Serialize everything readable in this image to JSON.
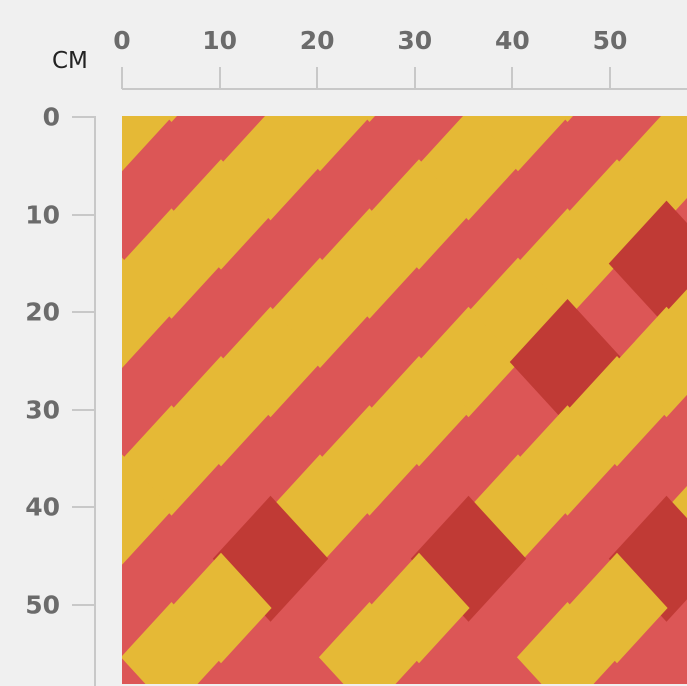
{
  "ruler": {
    "unit": "CM",
    "horizontal_labels": [
      "0",
      "10",
      "20",
      "30",
      "40",
      "50"
    ],
    "vertical_labels": [
      "0",
      "10",
      "20",
      "30",
      "40",
      "50"
    ]
  },
  "fabric_preview": {
    "pattern": "harlequin diamonds",
    "colors": {
      "light_red": "#dc5656",
      "yellow": "#e5b936",
      "dark_red": "#c03a35"
    }
  }
}
